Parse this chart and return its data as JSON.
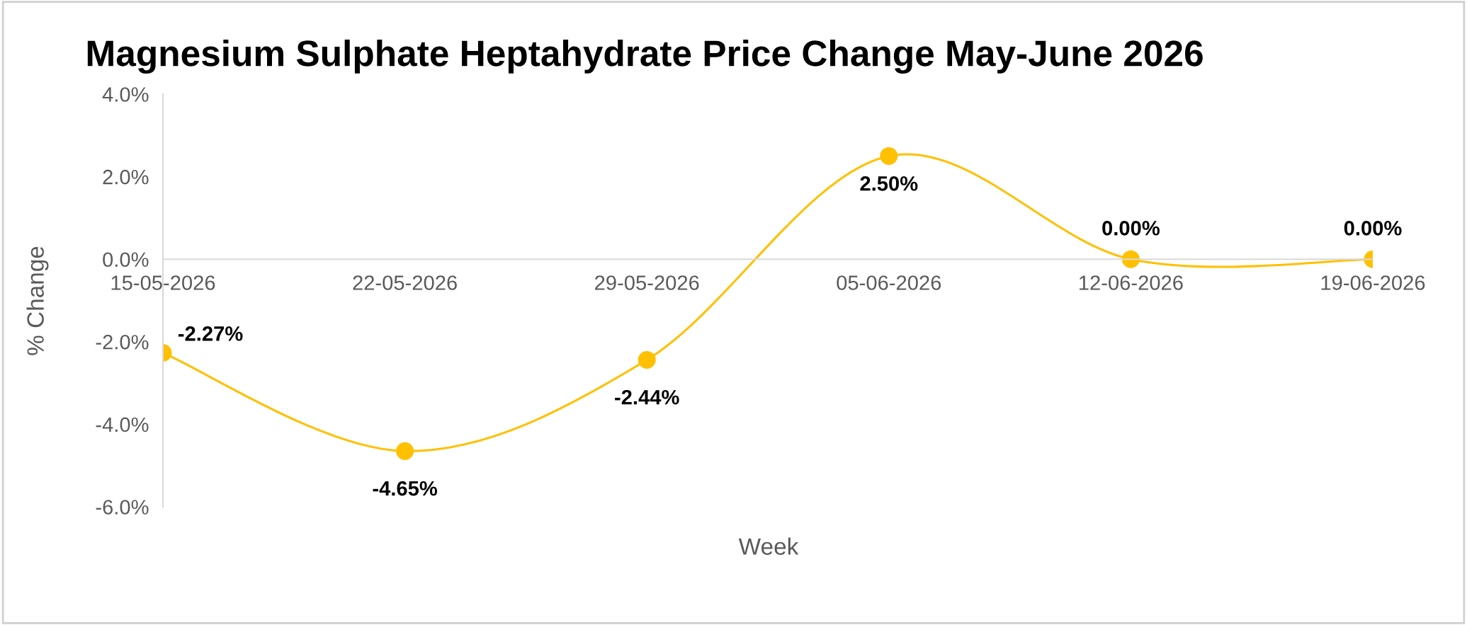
{
  "chart_data": {
    "type": "line",
    "title": "Magnesium Sulphate Heptahydrate Price Change May-June 2026",
    "xlabel": "Week",
    "ylabel": "% Change",
    "categories": [
      "15-05-2026",
      "22-05-2026",
      "29-05-2026",
      "05-06-2026",
      "12-06-2026",
      "19-06-2026"
    ],
    "series": [
      {
        "color": "#ffc000",
        "values": [
          -2.27,
          -4.65,
          -2.44,
          2.5,
          0.0,
          0.0
        ],
        "value_labels": [
          "-2.27%",
          "-4.65%",
          "-2.44%",
          "2.50%",
          "0.00%",
          "0.00%"
        ]
      }
    ],
    "ylim": [
      -6,
      4
    ],
    "yticks": [
      {
        "value": -6,
        "label": "-6.0%"
      },
      {
        "value": -4,
        "label": "-4.0%"
      },
      {
        "value": -2,
        "label": "-2.0%"
      },
      {
        "value": 0,
        "label": "0.0%"
      },
      {
        "value": 2,
        "label": "2.0%"
      },
      {
        "value": 4,
        "label": "4.0%"
      }
    ],
    "marker": "circle",
    "line_style": "solid",
    "grid": false,
    "legend": false
  }
}
